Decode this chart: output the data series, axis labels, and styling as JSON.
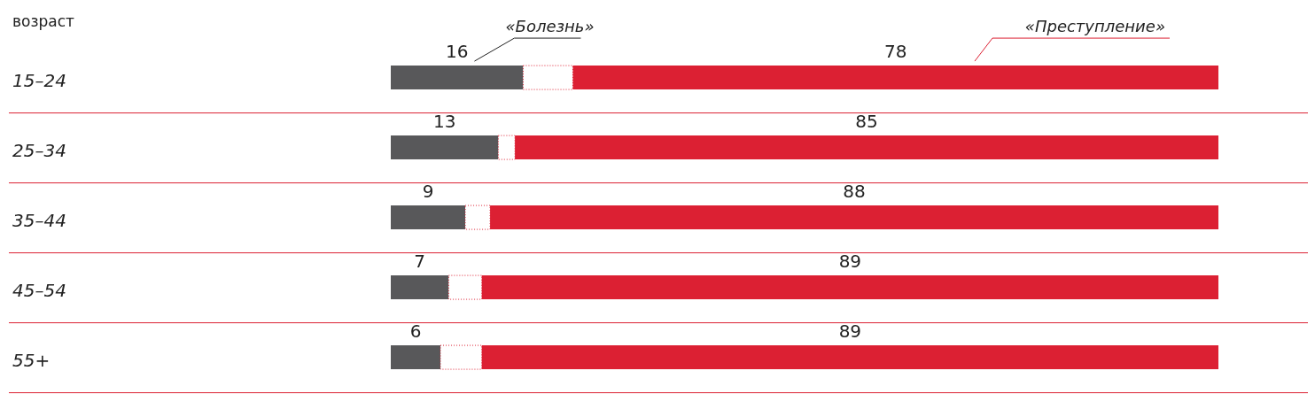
{
  "chart_data": {
    "type": "bar",
    "orientation": "horizontal",
    "stacked": true,
    "ylabel": "возраст",
    "categories": [
      "15–24",
      "25–34",
      "35–44",
      "45–54",
      "55+"
    ],
    "series": [
      {
        "name": "«Болезнь»",
        "color": "#58585a",
        "values": [
          16,
          13,
          9,
          7,
          6
        ],
        "value_labels": [
          "16",
          "13",
          "9",
          "7",
          "6"
        ]
      },
      {
        "color": "#ffffff",
        "values": [
          6,
          2,
          3,
          4,
          5
        ]
      },
      {
        "name": "«Преступление»",
        "color": "#dc2033",
        "values": [
          78,
          85,
          88,
          89,
          89
        ],
        "value_labels": [
          "78",
          "85",
          "88",
          "89",
          "89"
        ]
      }
    ],
    "legend": false,
    "grid": "y"
  }
}
